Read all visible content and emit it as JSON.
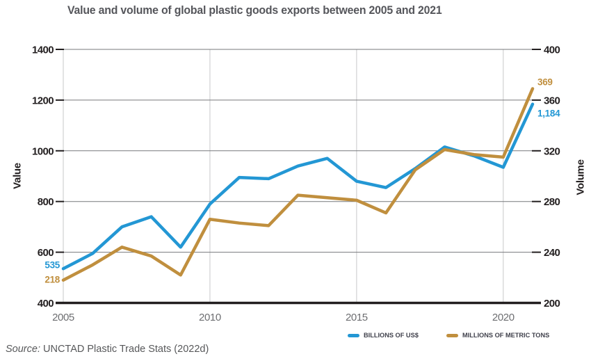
{
  "title": "Value and volume of global plastic goods exports between 2005 and 2021",
  "source": {
    "label": "Source:",
    "text": "UNCTAD Plastic Trade Stats (2022d)"
  },
  "colors": {
    "value_series": "#2397D4",
    "volume_series": "#C08F3E",
    "grid": "#77787B",
    "vertical_grid": "#C7C8CA",
    "axis": "#231F20",
    "x_tick_text": "#6D6E71",
    "y_tick_text": "#231F20"
  },
  "chart_data": {
    "type": "line",
    "title": "Value and volume of global plastic goods exports between 2005 and 2021",
    "x": [
      2005,
      2006,
      2007,
      2008,
      2009,
      2010,
      2011,
      2012,
      2013,
      2014,
      2015,
      2016,
      2017,
      2018,
      2019,
      2020,
      2021
    ],
    "x_ticks": [
      2005,
      2010,
      2015,
      2020
    ],
    "grid": true,
    "legend_position": "bottom",
    "left_axis": {
      "label": "Value",
      "ticks": [
        400,
        600,
        800,
        1000,
        1200,
        1400
      ],
      "range": [
        400,
        1400
      ]
    },
    "right_axis": {
      "label": "Volume",
      "ticks": [
        200,
        240,
        280,
        320,
        360,
        400
      ],
      "range": [
        200,
        400
      ]
    },
    "series": [
      {
        "name": "BILLIONS OF US$",
        "axis": "left",
        "color": "#2397D4",
        "values": [
          535,
          595,
          700,
          740,
          620,
          790,
          895,
          890,
          940,
          970,
          880,
          855,
          930,
          1015,
          980,
          935,
          1184
        ],
        "first_point_label": "535",
        "last_point_label": "1,184"
      },
      {
        "name": "MILLIONS OF METRIC TONS",
        "axis": "right",
        "color": "#C08F3E",
        "values": [
          218,
          230,
          244,
          237,
          222,
          266,
          263,
          261,
          285,
          283,
          281,
          271,
          305,
          321,
          317,
          315,
          369
        ],
        "first_point_label": "218",
        "last_point_label": "369"
      }
    ]
  }
}
